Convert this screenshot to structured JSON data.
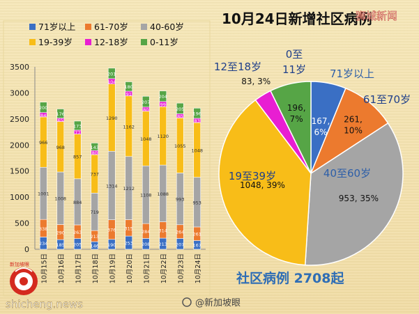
{
  "header": {
    "title": "10月24日新增社区病例",
    "watermark_top": "狮城新闻"
  },
  "footer": {
    "total_label": "社区病例 2708起",
    "site_watermark": "shicheng.news",
    "weibo_watermark": "@新加坡眼",
    "logo_text": "新加坡眼"
  },
  "colors": {
    "71岁以上": "#3a6fc4",
    "61-70岁": "#ec7a2e",
    "40-60岁": "#a5a5a5",
    "19-39岁": "#f8bd18",
    "12-18岁": "#e81ed2",
    "0-11岁": "#56a546"
  },
  "chart_data": [
    {
      "type": "bar",
      "stacked": true,
      "categories": [
        "10月15日",
        "10月16日",
        "10月17日",
        "10月18日",
        "10月19日",
        "10月20日",
        "10月21日",
        "10月22日",
        "10月23日",
        "10月24日"
      ],
      "y_ticks": [
        "0",
        "500",
        "1000",
        "1500",
        "2000",
        "2500",
        "3000",
        "3500"
      ],
      "ylim": [
        0,
        3500
      ],
      "legend_position": "top",
      "legend": [
        "71岁以上",
        "61-70岁",
        "40-60岁",
        "19-39岁",
        "12-18岁",
        "0-11岁"
      ],
      "series": [
        {
          "name": "71岁以上",
          "values": [
            234,
            185,
            205,
            146,
            190,
            253,
            208,
            213,
            207,
            167
          ]
        },
        {
          "name": "61-70岁",
          "values": [
            338,
            290,
            263,
            213,
            376,
            315,
            284,
            314,
            264,
            261
          ]
        },
        {
          "name": "40-60岁",
          "values": [
            1001,
            1008,
            884,
            719,
            1314,
            1212,
            1108,
            1088,
            993,
            953
          ]
        },
        {
          "name": "19-39岁",
          "values": [
            966,
            968,
            857,
            737,
            1290,
            1162,
            1048,
            1120,
            1055,
            1048
          ]
        },
        {
          "name": "12-18岁",
          "values": [
            84,
            65,
            77,
            80,
            104,
            91,
            80,
            99,
            80,
            83
          ]
        },
        {
          "name": "0-11岁",
          "values": [
            200,
            176,
            173,
            143,
            201,
            180,
            207,
            204,
            205,
            196
          ]
        }
      ]
    },
    {
      "type": "pie",
      "slices": [
        {
          "name": "71岁以上",
          "label": "71岁以上",
          "value": 167,
          "value_text": "167,",
          "pct_text": "6%"
        },
        {
          "name": "61-70岁",
          "label": "61至70岁",
          "value": 261,
          "value_text": "261,",
          "pct_text": "10%"
        },
        {
          "name": "40-60岁",
          "label": "40至60岁",
          "value": 953,
          "value_text": "953, 35%",
          "pct_text": ""
        },
        {
          "name": "19-39岁",
          "label": "19至39岁",
          "value": 1048,
          "value_text": "1048, 39%",
          "pct_text": ""
        },
        {
          "name": "12-18岁",
          "label": "12至18岁",
          "value": 83,
          "value_text": "83, 3%",
          "pct_text": ""
        },
        {
          "name": "0-11岁",
          "label": "0至11岁",
          "value": 196,
          "value_text": "196,",
          "pct_text": "7%"
        }
      ]
    }
  ]
}
